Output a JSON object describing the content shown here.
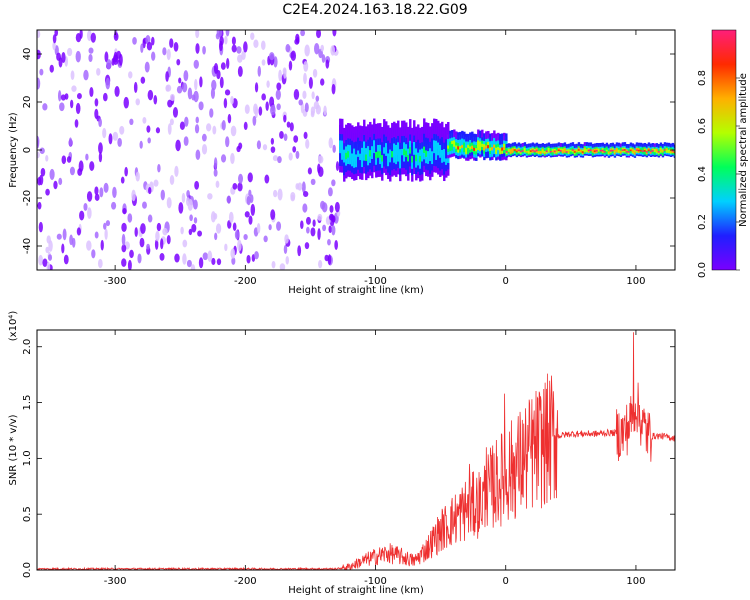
{
  "title": "C2E4.2024.163.18.22.G09",
  "colors": {
    "snr_line": "#ee3030",
    "colorbar": [
      "#7a00ff",
      "#1f1fff",
      "#00d0ff",
      "#00ff5a",
      "#b4ff00",
      "#ffb000",
      "#ff2a00",
      "#ff1e7a"
    ]
  },
  "chart_data": [
    {
      "type": "heatmap",
      "xlabel": "Height of straight line (km)",
      "ylabel": "Frequency (Hz)",
      "xlim": [
        -360,
        130
      ],
      "ylim": [
        -50,
        50
      ],
      "xticks": [
        -300,
        -200,
        -100,
        0,
        100
      ],
      "yticks": [
        -40,
        -20,
        0,
        20,
        40
      ],
      "colorbar": {
        "label": "Normalized spectral amplitude",
        "range": [
          0.0,
          1.0
        ],
        "ticks": [
          0.0,
          0.2,
          0.4,
          0.6,
          0.8
        ]
      },
      "regions": [
        {
          "x_range": [
            -360,
            -128
          ],
          "freq_range": [
            -50,
            50
          ],
          "amplitude": 0.05,
          "description": "scattered noise"
        },
        {
          "x_range": [
            -128,
            -45
          ],
          "freq_center": 0,
          "freq_halfwidth": 8,
          "amplitude": 0.35
        },
        {
          "x_range": [
            -45,
            0
          ],
          "freq_center": 2,
          "freq_halfwidth": 4,
          "amplitude": 0.7
        },
        {
          "x_range": [
            0,
            130
          ],
          "freq_center": 0,
          "freq_halfwidth": 2,
          "amplitude": 0.9
        }
      ]
    },
    {
      "type": "line",
      "xlabel": "Height of straight line (km)",
      "ylabel": "SNR (10 * v/v)",
      "yscale_label": "(x10⁴)",
      "xlim": [
        -360,
        130
      ],
      "ylim": [
        0,
        2.15
      ],
      "xticks": [
        -300,
        -200,
        -100,
        0,
        100
      ],
      "yticks": [
        0.0,
        0.5,
        1.0,
        1.5,
        2.0
      ],
      "x": [
        -360,
        -300,
        -250,
        -200,
        -150,
        -130,
        -120,
        -110,
        -100,
        -90,
        -80,
        -70,
        -60,
        -50,
        -40,
        -30,
        -20,
        -10,
        0,
        10,
        20,
        30,
        40,
        50,
        60,
        70,
        80,
        90,
        95,
        100,
        105,
        110,
        120,
        130
      ],
      "y": [
        0.01,
        0.01,
        0.01,
        0.01,
        0.01,
        0.01,
        0.03,
        0.08,
        0.12,
        0.15,
        0.12,
        0.08,
        0.2,
        0.35,
        0.45,
        0.55,
        0.6,
        0.75,
        0.85,
        0.95,
        1.05,
        1.15,
        1.2,
        1.22,
        1.22,
        1.22,
        1.23,
        1.22,
        1.3,
        1.5,
        1.3,
        1.2,
        1.2,
        1.18
      ],
      "peaks": [
        {
          "x": 98,
          "y": 2.13
        },
        {
          "x": -1,
          "y": 1.58
        },
        {
          "x": -15,
          "y": 1.1
        },
        {
          "x": -28,
          "y": 0.95
        }
      ]
    }
  ]
}
